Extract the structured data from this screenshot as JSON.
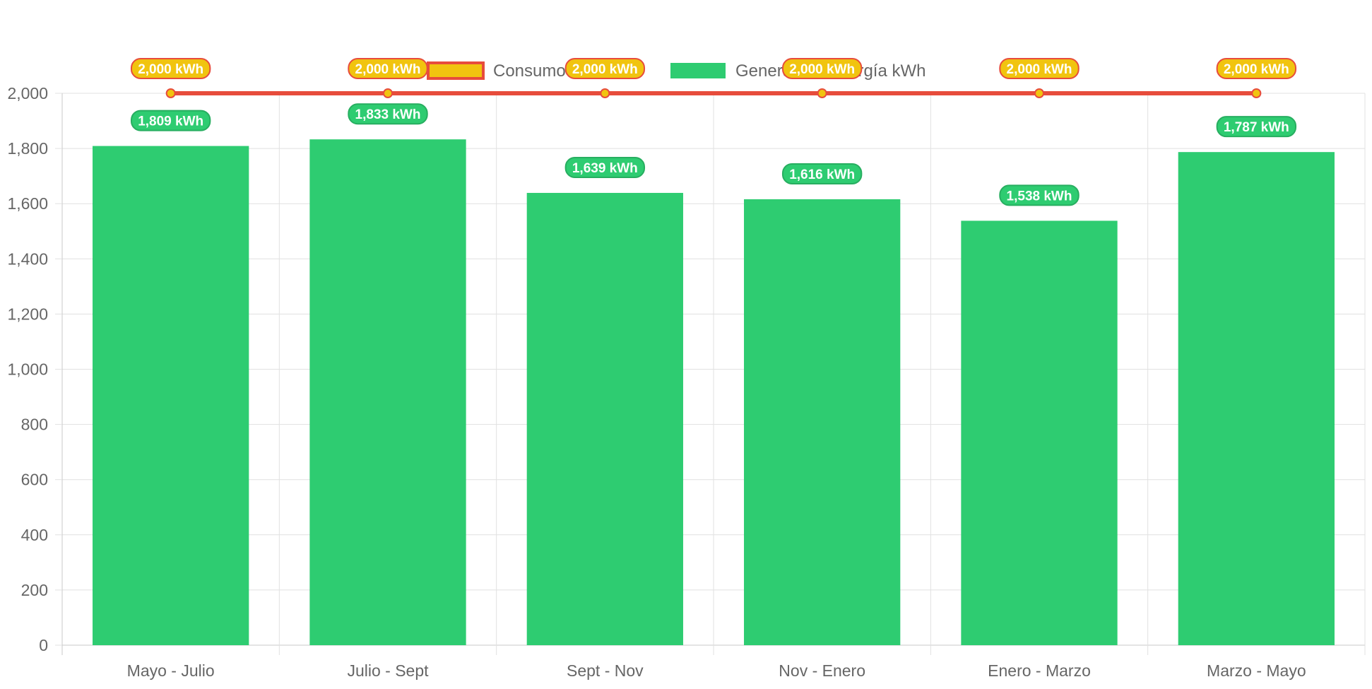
{
  "chart_data": {
    "type": "bar",
    "categories": [
      "Mayo - Julio",
      "Julio - Sept",
      "Sept - Nov",
      "Nov - Enero",
      "Enero - Marzo",
      "Marzo - Mayo"
    ],
    "series": [
      {
        "name": "Consumo kWh",
        "type": "line",
        "values": [
          2000,
          2000,
          2000,
          2000,
          2000,
          2000
        ],
        "labels": [
          "2,000 kWh",
          "2,000 kWh",
          "2,000 kWh",
          "2,000 kWh",
          "2,000 kWh",
          "2,000 kWh"
        ],
        "color": "#e74c3c",
        "fill_color": "#f1c40f"
      },
      {
        "name": "Generación Energía kWh",
        "type": "bar",
        "values": [
          1809,
          1833,
          1639,
          1616,
          1538,
          1787
        ],
        "labels": [
          "1,809 kWh",
          "1,833 kWh",
          "1,639 kWh",
          "1,616 kWh",
          "1,538 kWh",
          "1,787 kWh"
        ],
        "color": "#2ecc71"
      }
    ],
    "ylim": [
      0,
      2000
    ],
    "yticks": [
      0,
      200,
      400,
      600,
      800,
      1000,
      1200,
      1400,
      1600,
      1800,
      2000
    ],
    "ytick_labels": [
      "0",
      "200",
      "400",
      "600",
      "800",
      "1,000",
      "1,200",
      "1,400",
      "1,600",
      "1,800",
      "2,000"
    ],
    "grid": true,
    "legend_position": "top",
    "title": "",
    "xlabel": "",
    "ylabel": ""
  }
}
